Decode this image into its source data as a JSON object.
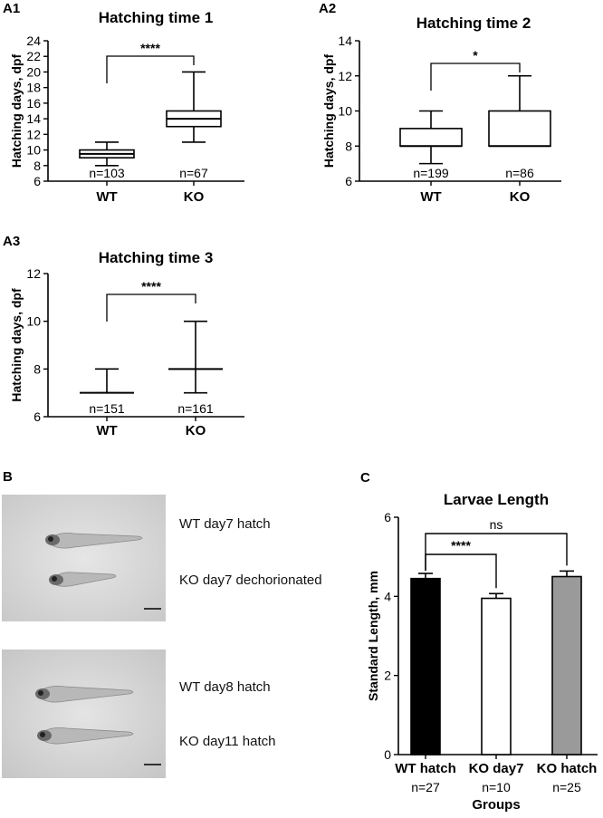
{
  "chart_data": [
    {
      "panel": "A1",
      "type": "boxplot",
      "title": "Hatching time 1",
      "ylabel": "Hatching days, dpf",
      "ylim": [
        6,
        24
      ],
      "yticks": [
        6,
        8,
        10,
        12,
        14,
        16,
        18,
        20,
        22,
        24
      ],
      "categories": [
        "WT",
        "KO"
      ],
      "boxes": [
        {
          "category": "WT",
          "min": 8,
          "q1": 9,
          "median": 9.5,
          "q3": 10,
          "max": 11,
          "n": "n=103"
        },
        {
          "category": "KO",
          "min": 11,
          "q1": 13,
          "median": 14,
          "q3": 15,
          "max": 20,
          "n": "n=67"
        }
      ],
      "significance": [
        {
          "from": 0,
          "to": 1,
          "label": "****"
        }
      ]
    },
    {
      "panel": "A2",
      "type": "boxplot",
      "title": "Hatching time 2",
      "ylabel": "Hatching days, dpf",
      "ylim": [
        6,
        14
      ],
      "yticks": [
        6,
        8,
        10,
        12,
        14
      ],
      "categories": [
        "WT",
        "KO"
      ],
      "boxes": [
        {
          "category": "WT",
          "min": 7,
          "q1": 8,
          "median": 8,
          "q3": 9,
          "max": 10,
          "n": "n=199"
        },
        {
          "category": "KO",
          "min": 8,
          "q1": 8,
          "median": 8,
          "q3": 10,
          "max": 12,
          "n": "n=86"
        }
      ],
      "significance": [
        {
          "from": 0,
          "to": 1,
          "label": "*"
        }
      ]
    },
    {
      "panel": "A3",
      "type": "boxplot",
      "title": "Hatching time 3",
      "ylabel": "Hatching days, dpf",
      "ylim": [
        6,
        12
      ],
      "yticks": [
        6,
        8,
        10,
        12
      ],
      "categories": [
        "WT",
        "KO"
      ],
      "boxes": [
        {
          "category": "WT",
          "min": 7,
          "q1": 7,
          "median": 7,
          "q3": 7,
          "max": 8,
          "n": "n=151"
        },
        {
          "category": "KO",
          "min": 7,
          "q1": 8,
          "median": 8,
          "q3": 8,
          "max": 10,
          "n": "n=161"
        }
      ],
      "significance": [
        {
          "from": 0,
          "to": 1,
          "label": "****"
        }
      ]
    },
    {
      "panel": "C",
      "type": "bar",
      "title": "Larvae Length",
      "ylabel": "Standard Length, mm",
      "xlabel": "Groups",
      "ylim": [
        0,
        6
      ],
      "yticks": [
        0,
        2,
        4,
        6
      ],
      "categories": [
        "WT hatch",
        "KO day7",
        "KO hatch"
      ],
      "n_labels": [
        "n=27",
        "n=10",
        "n=25"
      ],
      "values": [
        4.45,
        3.95,
        4.5
      ],
      "errors": [
        0.13,
        0.12,
        0.14
      ],
      "bar_colors": [
        "#000000",
        "#ffffff",
        "#9a9a9a"
      ],
      "significance": [
        {
          "from": 0,
          "to": 1,
          "label": "****"
        },
        {
          "from": 0,
          "to": 2,
          "label": "ns"
        }
      ]
    }
  ],
  "panel_b": {
    "letter": "B",
    "photos": [
      {
        "labels": [
          "WT day7 hatch",
          "KO day7 dechorionated"
        ]
      },
      {
        "labels": [
          "WT day8 hatch",
          "KO day11 hatch"
        ]
      }
    ]
  }
}
